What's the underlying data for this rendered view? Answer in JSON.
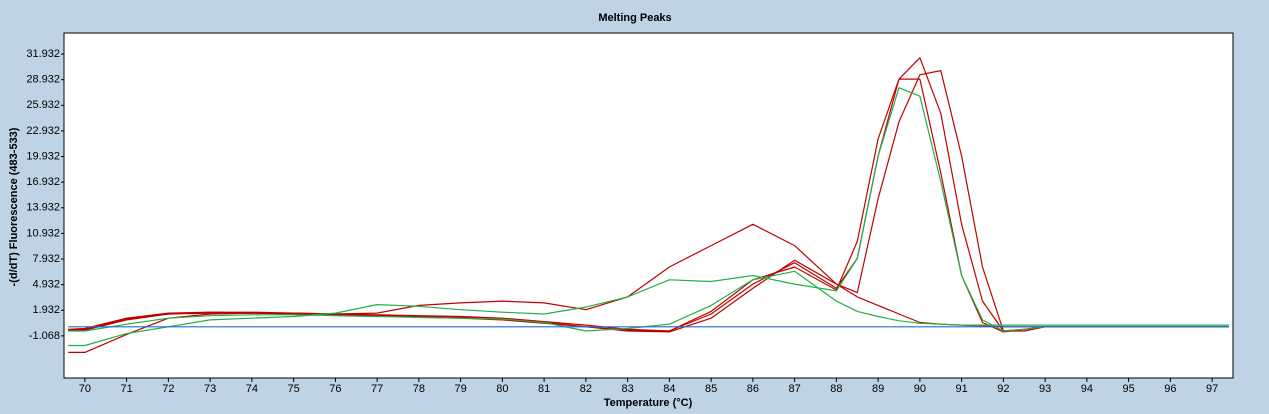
{
  "chart_data": {
    "type": "line",
    "title": "Melting Peaks",
    "xlabel": "Temperature (°C)",
    "ylabel": "-(d/dT) Fluorescence (483-533)",
    "xlim": [
      69.5,
      97.5
    ],
    "ylim": [
      -6,
      34.4
    ],
    "xticks": [
      70,
      71,
      72,
      73,
      74,
      75,
      76,
      77,
      78,
      79,
      80,
      81,
      82,
      83,
      84,
      85,
      86,
      87,
      88,
      89,
      90,
      91,
      92,
      93,
      94,
      95,
      96,
      97
    ],
    "yticks": [
      -1.068,
      1.932,
      4.932,
      7.932,
      10.932,
      13.932,
      16.932,
      19.932,
      22.932,
      25.932,
      28.932,
      31.932
    ],
    "grid": false,
    "x": [
      69.6,
      70,
      71,
      72,
      73,
      74,
      75,
      76,
      77,
      78,
      79,
      80,
      81,
      82,
      83,
      84,
      85,
      86,
      87,
      88,
      88.5,
      89,
      89.5,
      90,
      90.5,
      91,
      91.5,
      92,
      92.5,
      93,
      94,
      95,
      96,
      97,
      97.4
    ],
    "series": [
      {
        "color": "#c00000",
        "values": [
          -3,
          -3,
          -0.9,
          1,
          1.5,
          1.6,
          1.6,
          1.5,
          1.6,
          2.5,
          2.8,
          3,
          2.8,
          2,
          3.5,
          7,
          9.5,
          12,
          9.5,
          5,
          3.5,
          2.5,
          1.5,
          0.5,
          0.3,
          0.2,
          0.1,
          0,
          0,
          0,
          0,
          0,
          0,
          0,
          0
        ]
      },
      {
        "color": "#c00000",
        "values": [
          -0.5,
          -0.4,
          0.8,
          1.5,
          1.7,
          1.7,
          1.6,
          1.5,
          1.4,
          1.3,
          1.2,
          1,
          0.6,
          0.2,
          -0.3,
          -0.5,
          1.5,
          5,
          7.5,
          4.5,
          8,
          20,
          29,
          31.5,
          25,
          12,
          3,
          -0.5,
          -0.3,
          0,
          0,
          0,
          0,
          0,
          0
        ]
      },
      {
        "color": "#c00000",
        "values": [
          -0.3,
          -0.2,
          1,
          1.6,
          1.7,
          1.6,
          1.5,
          1.4,
          1.3,
          1.2,
          1.1,
          0.9,
          0.5,
          0,
          -0.5,
          -0.6,
          1,
          4.5,
          7.8,
          5,
          4,
          15,
          24,
          29.5,
          30,
          20,
          7,
          -0.5,
          -0.5,
          0,
          0,
          0,
          0,
          0,
          0
        ]
      },
      {
        "color": "#c00000",
        "values": [
          -0.4,
          -0.3,
          0.9,
          1.5,
          1.6,
          1.6,
          1.5,
          1.4,
          1.3,
          1.1,
          1,
          0.8,
          0.4,
          0,
          -0.4,
          -0.5,
          1.8,
          5.5,
          7,
          4.3,
          10,
          22,
          29,
          29,
          18,
          6,
          0.5,
          -0.6,
          -0.3,
          0,
          0,
          0,
          0,
          0,
          0
        ]
      },
      {
        "color": "#22b04a",
        "values": [
          -2.2,
          -2.2,
          -0.8,
          0,
          0.8,
          1,
          1.2,
          1.6,
          2.6,
          2.4,
          2,
          1.7,
          1.5,
          2.3,
          3.5,
          5.5,
          5.3,
          6,
          5,
          4.2,
          8,
          20,
          28,
          27,
          17,
          6,
          0.8,
          -0.5,
          -0.3,
          0,
          0,
          0,
          0,
          0,
          0
        ]
      },
      {
        "color": "#22b04a",
        "values": [
          -0.5,
          -0.5,
          0.3,
          1,
          1.3,
          1.4,
          1.4,
          1.3,
          1.2,
          1.1,
          1,
          0.9,
          0.5,
          -0.5,
          -0.2,
          0.3,
          2.5,
          5.5,
          6.5,
          3,
          1.8,
          1.2,
          0.7,
          0.4,
          0.3,
          0.2,
          0.2,
          0.2,
          0.2,
          0.2,
          0.2,
          0.2,
          0.2,
          0.2,
          0.2
        ]
      },
      {
        "color": "#1f6fd0",
        "values": [
          0,
          0,
          0,
          0,
          0,
          0,
          0,
          0,
          0,
          0,
          0,
          0,
          0,
          0,
          0,
          0,
          0,
          0,
          0,
          0,
          0,
          0,
          0,
          0,
          0,
          0,
          0,
          0,
          0,
          0,
          0,
          0,
          0,
          0,
          0
        ]
      }
    ]
  }
}
